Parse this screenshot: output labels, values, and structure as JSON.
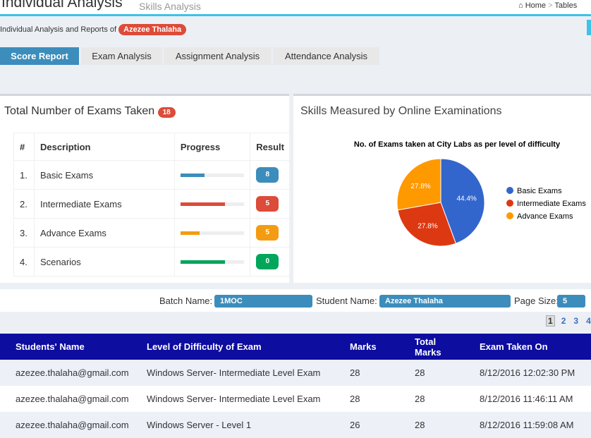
{
  "header": {
    "title": "Individual Analysis",
    "subtitle": "Skills Analysis",
    "breadcrumb": [
      "Home",
      "Tables"
    ],
    "breadcrumb_separator": ">"
  },
  "intro": {
    "text": "Individual Analysis and Reports of",
    "student": "Azezee Thalaha"
  },
  "tabs": [
    "Score Report",
    "Exam Analysis",
    "Assignment Analysis",
    "Attendance Analysis"
  ],
  "exams_panel": {
    "title": "Total Number of Exams Taken",
    "count": 18,
    "columns": [
      "#",
      "Description",
      "Progress",
      "Result"
    ],
    "rows": [
      {
        "index": "1.",
        "description": "Basic Exams",
        "progress": 38,
        "result": 8,
        "color": "#3c8dbc"
      },
      {
        "index": "2.",
        "description": "Intermediate Exams",
        "progress": 70,
        "result": 5,
        "color": "#dd4b39"
      },
      {
        "index": "3.",
        "description": "Advance Exams",
        "progress": 30,
        "result": 5,
        "color": "#f39c12"
      },
      {
        "index": "4.",
        "description": "Scenarios",
        "progress": 70,
        "result": 0,
        "color": "#00a65a"
      }
    ]
  },
  "skills_panel": {
    "title": "Skills Measured by Online Examinations"
  },
  "chart_data": {
    "type": "pie",
    "title": "No. of Exams taken at City Labs as per level of difficulty",
    "categories": [
      "Basic Exams",
      "Intermediate Exams",
      "Advance Exams"
    ],
    "values": [
      44.4,
      27.8,
      27.8
    ],
    "value_labels": [
      "44.4%",
      "27.8%",
      "27.8%"
    ],
    "colors": [
      "#3366cc",
      "#dc3912",
      "#ff9900"
    ],
    "legend": "right"
  },
  "filters": {
    "batch_label": "Batch Name:",
    "batch": "1MOC",
    "student_label": "Student Name:",
    "student": "Azezee Thalaha",
    "page_size_label": "Page Size:",
    "page_size": "5"
  },
  "pagination": [
    "1",
    "2",
    "3",
    "4"
  ],
  "results_table": {
    "columns": [
      "Students' Name",
      "Level of Difficulty of Exam",
      "Marks",
      "Total Marks",
      "Exam Taken On"
    ],
    "rows": [
      [
        "azezee.thalaha@gmail.com",
        "Windows Server- Intermediate Level Exam",
        "28",
        "28",
        "8/12/2016 12:02:30 PM"
      ],
      [
        "azezee.thalaha@gmail.com",
        "Windows Server- Intermediate Level Exam",
        "28",
        "28",
        "8/12/2016 11:46:11 AM"
      ],
      [
        "azezee.thalaha@gmail.com",
        "Windows Server - Level 1",
        "26",
        "28",
        "8/12/2016 11:59:08 AM"
      ]
    ]
  }
}
